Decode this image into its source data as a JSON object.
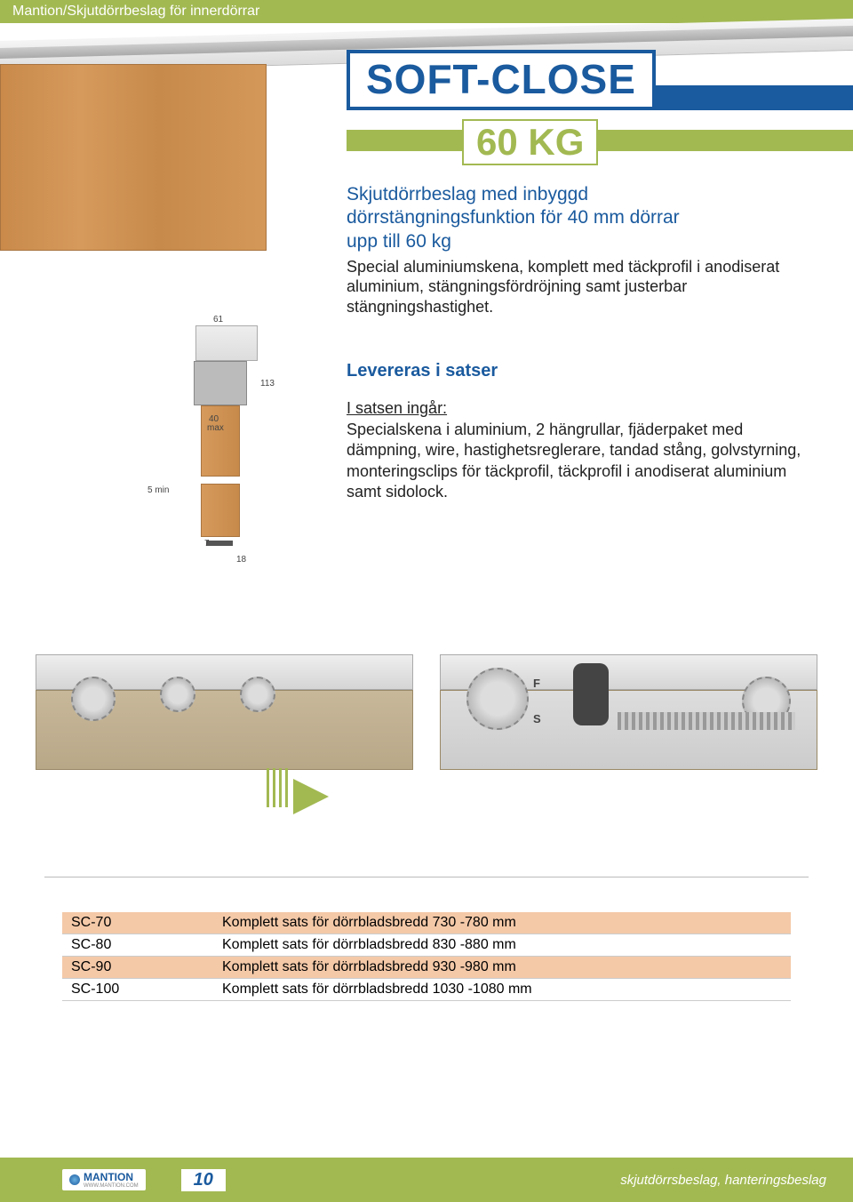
{
  "header": {
    "text": "Mantion/Skjutdörrbeslag för innerdörrar"
  },
  "title": {
    "main": "SOFT-CLOSE",
    "badge": "60 KG",
    "colors": {
      "blue": "#1a5a9e",
      "green": "#a2b952",
      "wood": "#d69a5c"
    }
  },
  "description": {
    "blue_line1": "Skjutdörrbeslag med inbyggd",
    "blue_line2": "dörrstängningsfunktion för 40 mm dörrar",
    "blue_line3": "upp till 60 kg",
    "black": "Special aluminiumskena, komplett med täckprofil i anodiserat aluminium, stängningsfördröjning samt justerbar stängningshastighet."
  },
  "section2": {
    "lev": "Levereras i satser",
    "ingar_head": "I  satsen ingår:",
    "ingar_body": "Specialskena i aluminium, 2 hängrullar, fjäderpaket med dämpning, wire, hastighetsreglerare, tandad stång, golvstyrning, monteringsclips för täckprofil, täckprofil i anodiserat aluminium samt sidolock."
  },
  "dimensions": {
    "d61": "61",
    "d113": "113",
    "d40max_a": "40",
    "d40max_b": "max",
    "d5min": "5 min",
    "d7": "7",
    "d18": "18"
  },
  "table": {
    "rows": [
      {
        "code": "SC-70",
        "desc": "Komplett sats för dörrbladsbredd 730 -780 mm",
        "highlight": true
      },
      {
        "code": "SC-80",
        "desc": "Komplett sats för dörrbladsbredd 830 -880 mm",
        "highlight": false
      },
      {
        "code": "SC-90",
        "desc": "Komplett sats för dörrbladsbredd 930 -980 mm",
        "highlight": true
      },
      {
        "code": "SC-100",
        "desc": "Komplett sats för dörrbladsbredd 1030 -1080 mm",
        "highlight": false
      }
    ]
  },
  "footer": {
    "logo": "MANTION",
    "logo_sub": "WWW.MANTION.COM",
    "page": "10",
    "right": "skjutdörrsbeslag, hanteringsbeslag"
  },
  "mech_labels": {
    "f": "F",
    "s": "S"
  }
}
